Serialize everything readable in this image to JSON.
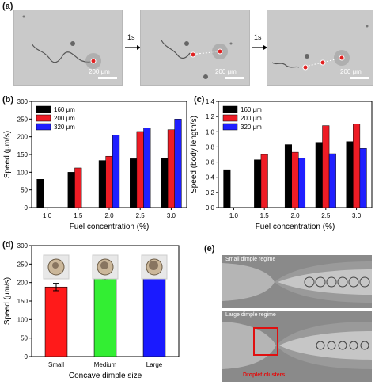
{
  "panels": {
    "a": "(a)",
    "b": "(b)",
    "c": "(c)",
    "d": "(d)",
    "e": "(e)"
  },
  "panel_a": {
    "scale_label": "200 μm",
    "time_step": "1s"
  },
  "panel_e": {
    "top_label": "Small dimple regime",
    "bottom_label": "Large dimple regime",
    "annotation": "Droplet clusters"
  },
  "colors": {
    "s160": "#000000",
    "s200": "#ee1c25",
    "s320": "#1f1fff",
    "small": "#ff1a1a",
    "medium": "#33ee33",
    "large": "#1a1aff"
  },
  "chart_data": [
    {
      "id": "b",
      "type": "bar",
      "xlabel": "Fuel concentration (%)",
      "ylabel": "Speed (μm/s)",
      "categories": [
        "1.0",
        "1.5",
        "2.0",
        "2.5",
        "3.0"
      ],
      "ylim": [
        0,
        300
      ],
      "yticks": [
        0,
        50,
        100,
        150,
        200,
        250,
        300
      ],
      "series": [
        {
          "name": "160 μm",
          "values": [
            80,
            100,
            133,
            138,
            140
          ]
        },
        {
          "name": "200 μm",
          "values": [
            null,
            112,
            145,
            215,
            220
          ]
        },
        {
          "name": "320 μm",
          "values": [
            null,
            null,
            205,
            225,
            250
          ]
        }
      ],
      "legend": "top-left"
    },
    {
      "id": "c",
      "type": "bar",
      "xlabel": "Fuel concentration (%)",
      "ylabel": "Speed (body length/s)",
      "categories": [
        "1.0",
        "1.5",
        "2.0",
        "2.5",
        "3.0"
      ],
      "ylim": [
        0,
        1.4
      ],
      "yticks": [
        "0.0",
        "0.2",
        "0.4",
        "0.6",
        "0.8",
        "1.0",
        "1.2",
        "1.4"
      ],
      "series": [
        {
          "name": "160 μm",
          "values": [
            0.5,
            0.63,
            0.83,
            0.86,
            0.87
          ]
        },
        {
          "name": "200 μm",
          "values": [
            null,
            0.7,
            0.73,
            1.08,
            1.1
          ]
        },
        {
          "name": "320 μm",
          "values": [
            null,
            null,
            0.65,
            0.71,
            0.78
          ]
        }
      ],
      "legend": "top-left"
    },
    {
      "id": "d",
      "type": "bar",
      "xlabel": "Concave dimple size",
      "ylabel": "Speed (μm/s)",
      "categories": [
        "Small",
        "Medium",
        "Large"
      ],
      "values": [
        188,
        225,
        240
      ],
      "errors": [
        10,
        18,
        15
      ],
      "ylim": [
        0,
        300
      ],
      "yticks": [
        0,
        50,
        100,
        150,
        200,
        250,
        300
      ]
    }
  ]
}
